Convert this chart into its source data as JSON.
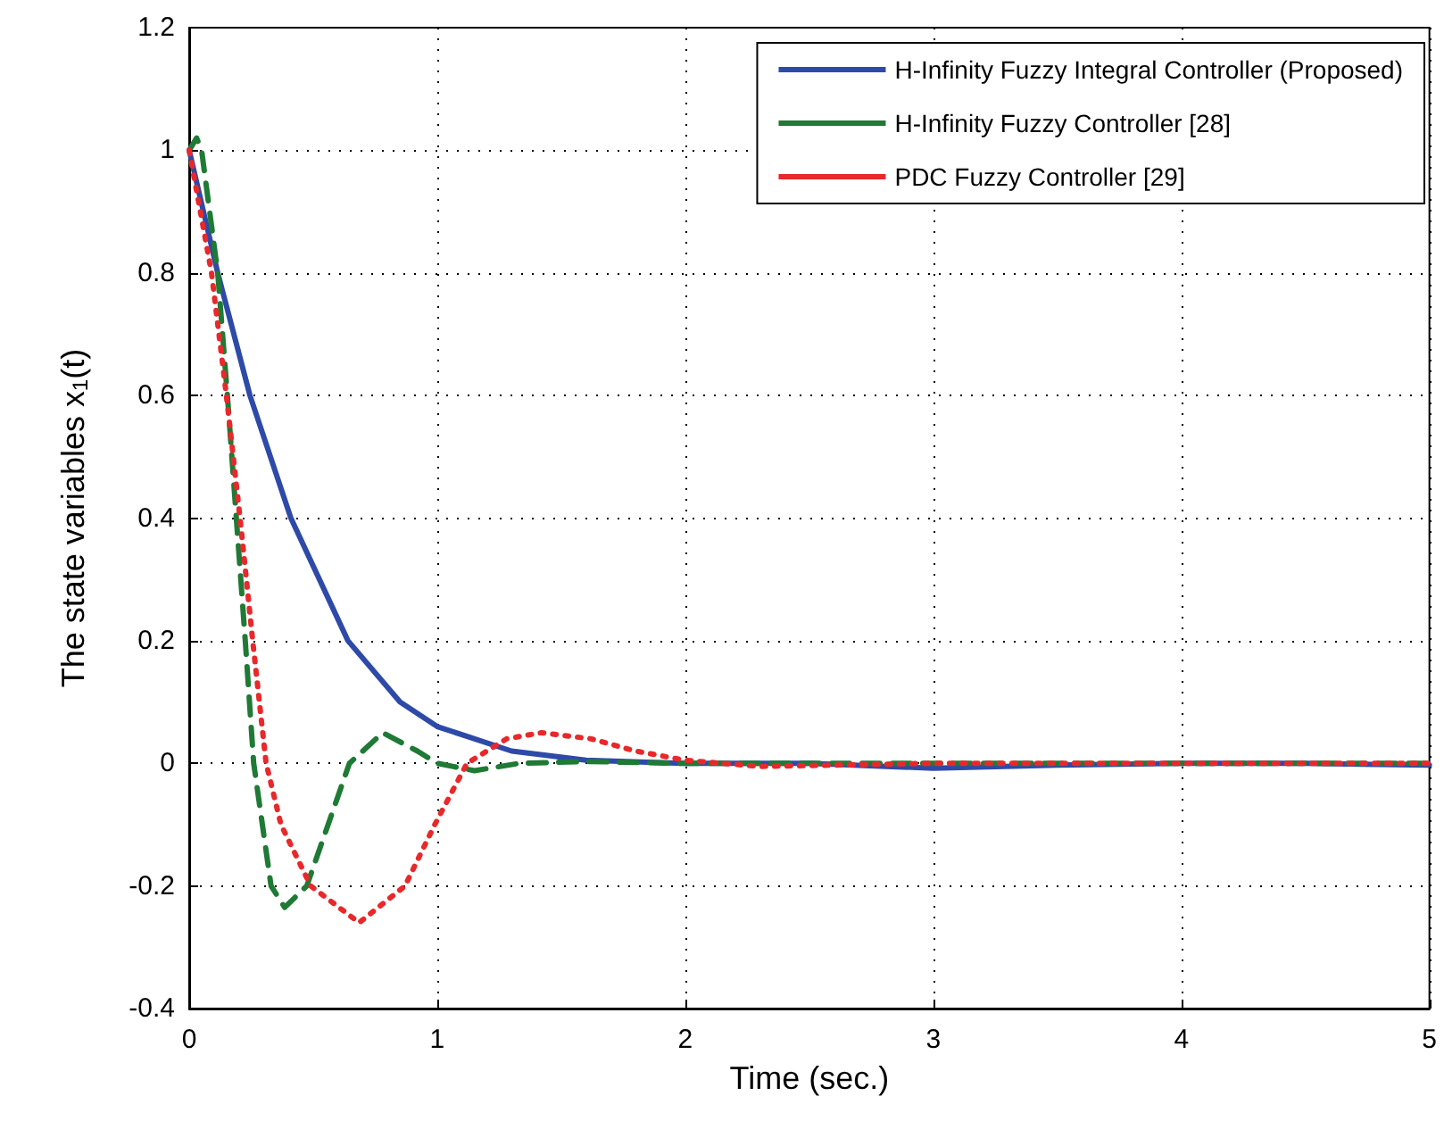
{
  "chart_data": {
    "type": "line",
    "xlabel": "Time (sec.)",
    "ylabel": "The state variables x$_{1}$(t)",
    "xlim": [
      0,
      5
    ],
    "xticks": [
      0,
      1,
      2,
      3,
      4,
      5
    ],
    "ylim": [
      -0.4,
      1.2
    ],
    "yticks": [
      -0.4,
      -0.2,
      0,
      0.2,
      0.4,
      0.6,
      0.8,
      1,
      1.2
    ],
    "grid": true,
    "legend": "top right",
    "series": [
      {
        "name": "H-Infinity Fuzzy Integral Controller (Proposed)",
        "color": "#2e4aa8",
        "line_style": "solid",
        "x": [
          0,
          0.115,
          0.245,
          0.41,
          0.64,
          0.85,
          1.0,
          1.3,
          1.6,
          2.0,
          2.5,
          3.0,
          3.5,
          4.0,
          4.5,
          5.0
        ],
        "values": [
          1,
          0.8,
          0.6,
          0.4,
          0.2,
          0.1,
          0.06,
          0.02,
          0.005,
          0,
          0,
          -0.008,
          -0.003,
          0,
          0,
          -0.003
        ]
      },
      {
        "name": "H-Infinity Fuzzy Controller [28]",
        "color": "#1e7a35",
        "line_style": "dashed",
        "x": [
          0,
          0.03,
          0.05,
          0.115,
          0.154,
          0.19,
          0.226,
          0.26,
          0.33,
          0.385,
          0.474,
          0.56,
          0.646,
          0.78,
          0.92,
          1.0,
          1.15,
          1.33,
          1.6,
          2.0,
          3.0,
          4.0,
          5.0
        ],
        "values": [
          1,
          1.02,
          1.0,
          0.8,
          0.6,
          0.4,
          0.2,
          0,
          -0.2,
          -0.235,
          -0.2,
          -0.1,
          0,
          0.05,
          0.02,
          0,
          -0.012,
          0,
          0.003,
          0,
          0,
          0,
          0
        ]
      },
      {
        "name": "PDC Fuzzy Controller [29]",
        "color": "#e8282a",
        "line_style": "dotted",
        "x": [
          0,
          0.09,
          0.15,
          0.205,
          0.256,
          0.31,
          0.37,
          0.49,
          0.685,
          0.87,
          0.99,
          1.12,
          1.28,
          1.42,
          1.62,
          1.8,
          2.0,
          2.3,
          3.0,
          4.0,
          5.0
        ],
        "values": [
          1,
          0.8,
          0.6,
          0.4,
          0.2,
          0,
          -0.1,
          -0.2,
          -0.26,
          -0.2,
          -0.1,
          0,
          0.04,
          0.05,
          0.04,
          0.02,
          0.005,
          -0.005,
          0,
          0,
          0
        ]
      }
    ]
  }
}
